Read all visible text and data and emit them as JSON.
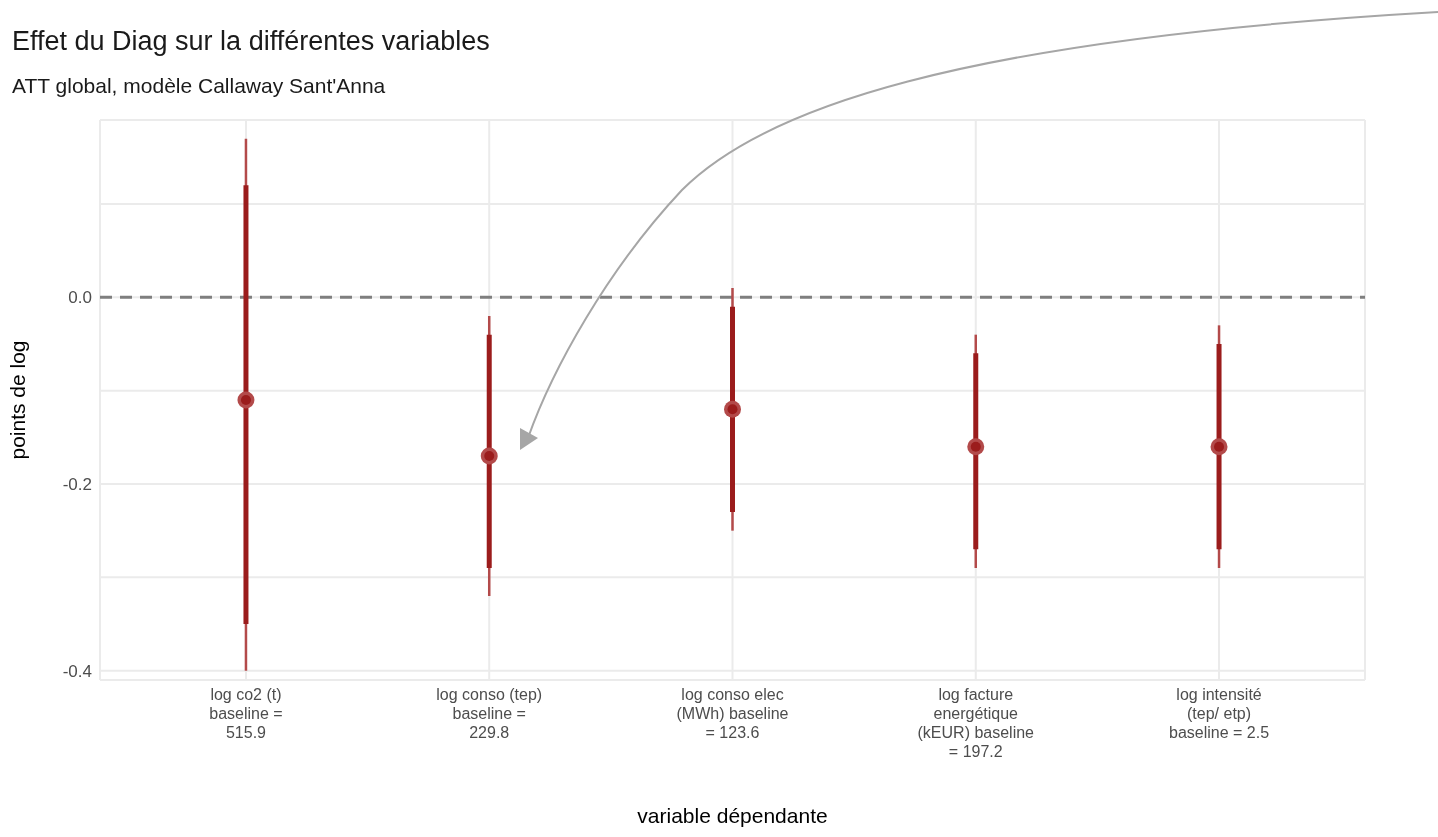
{
  "chart_data": {
    "type": "scatter",
    "title": "Effet du Diag sur la différentes variables",
    "subtitle": "ATT global, modèle Callaway Sant'Anna",
    "xlabel": "variable dépendante",
    "ylabel": "points de log",
    "categories": [
      "log co2 (t) baseline = 515.9",
      "log conso (tep) baseline = 229.8",
      "log conso elec (MWh) baseline = 123.6",
      "log facture energétique (kEUR) baseline = 197.2",
      "log intensité (tep/ etp) baseline = 2.5"
    ],
    "series": [
      {
        "color": "#9b1c1c",
        "marker": "circle",
        "values": [
          -0.11,
          -0.17,
          -0.12,
          -0.16,
          -0.16
        ],
        "errors": [
          [
            -0.35,
            0.12
          ],
          [
            -0.29,
            -0.04
          ],
          [
            -0.23,
            -0.01
          ],
          [
            -0.27,
            -0.06
          ],
          [
            -0.27,
            -0.05
          ]
        ]
      },
      {
        "color": "#b34a4a",
        "values": [
          -0.11,
          -0.17,
          -0.12,
          -0.16,
          -0.16
        ],
        "errors": [
          [
            -0.4,
            0.17
          ],
          [
            -0.32,
            -0.02
          ],
          [
            -0.25,
            0.01
          ],
          [
            -0.29,
            -0.04
          ],
          [
            -0.29,
            -0.03
          ]
        ]
      }
    ],
    "ylim": [
      -0.41,
      0.19
    ],
    "yticks": [
      {
        "value": -0.4,
        "label": "-0.4"
      },
      {
        "value": -0.3,
        "label": null
      },
      {
        "value": -0.2,
        "label": "-0.2"
      },
      {
        "value": -0.1,
        "label": null
      },
      {
        "value": 0,
        "label": "0.0"
      },
      {
        "value": 0.1,
        "label": null
      }
    ],
    "ref_lines": [
      {
        "axis": "y",
        "value": 0,
        "color": "#7f7f7f",
        "line_style": "dashed"
      }
    ],
    "grid": true,
    "legend": false
  }
}
